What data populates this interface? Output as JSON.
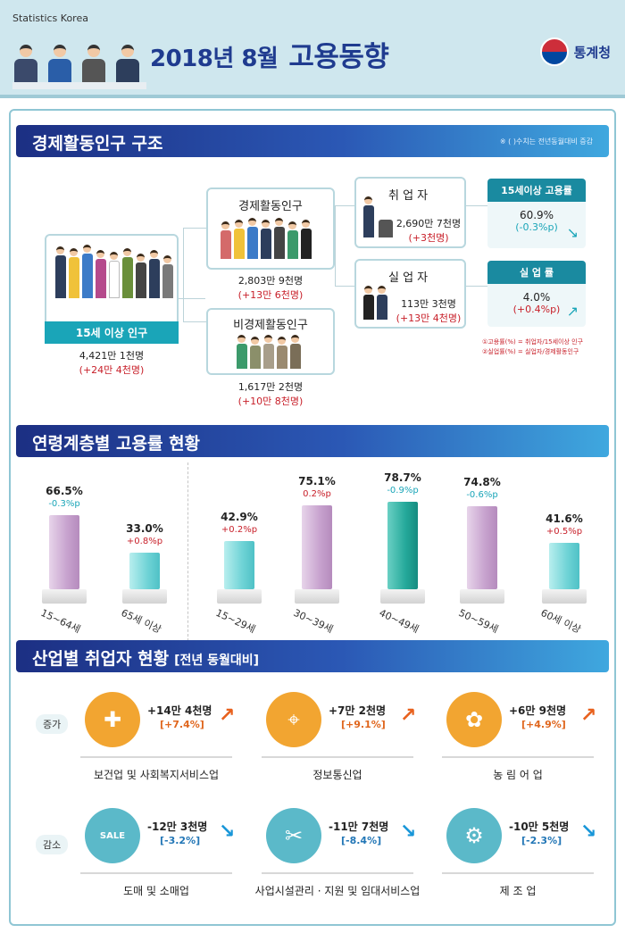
{
  "header": {
    "org_en": "Statistics Korea",
    "title": "2018년 8월",
    "title_sub": "고용동향",
    "logo_name": "통계청"
  },
  "section1": {
    "title": "경제활동인구 구조",
    "note": "※ ( )수치는 전년동월대비 증감",
    "pop15": {
      "label": "15세 이상 인구",
      "value": "4,421만 1천명",
      "change": "(+24만 4천명)"
    },
    "active": {
      "label": "경제활동인구",
      "value": "2,803만 9천명",
      "change": "(+13만 6천명)"
    },
    "inactive": {
      "label": "비경제활동인구",
      "value": "1,617만 2천명",
      "change": "(+10만 8천명)"
    },
    "employed": {
      "label": "취 업 자",
      "value": "2,690만 7천명",
      "change": "(+3천명)"
    },
    "unemployed": {
      "label": "실 업 자",
      "value": "113만 3천명",
      "change": "(+13만 4천명)"
    },
    "employment_rate": {
      "label": "15세이상 고용률",
      "value": "60.9%",
      "change": "(-0.3%p)"
    },
    "unemployment_rate": {
      "label": "실 업 률",
      "value": "4.0%",
      "change": "(+0.4%p)"
    },
    "footnote1": "①고용률(%) = 취업자/15세이상 인구",
    "footnote2": "②실업률(%) = 실업자/경제활동인구"
  },
  "section2": {
    "title": "연령계층별 고용률 현황"
  },
  "chart_data": {
    "type": "bar",
    "title": "연령계층별 고용률 현황",
    "categories": [
      "15~64세",
      "65세 이상",
      "15~29세",
      "30~39세",
      "40~49세",
      "50~59세",
      "60세 이상"
    ],
    "values": [
      66.5,
      33.0,
      42.9,
      75.1,
      78.7,
      74.8,
      41.6
    ],
    "value_labels": [
      "66.5%",
      "33.0%",
      "42.9%",
      "75.1%",
      "78.7%",
      "74.8%",
      "41.6%"
    ],
    "changes": [
      "-0.3%p",
      "+0.8%p",
      "+0.2%p",
      "0.2%p",
      "-0.9%p",
      "-0.6%p",
      "+0.5%p"
    ],
    "ylim": [
      0,
      100
    ]
  },
  "section3": {
    "title": "산업별 취업자 현황",
    "bracket": "[전년 동월대비]",
    "increase_label": "증가",
    "decrease_label": "감소",
    "increase": [
      {
        "name": "보건업 및 사회복지서비스업",
        "delta": "+14만 4천명",
        "pct": "[+7.4%]",
        "icon": "health-care-icon"
      },
      {
        "name": "정보통신업",
        "delta": "+7만 2천명",
        "pct": "[+9.1%]",
        "icon": "computer-mouse-icon"
      },
      {
        "name": "농 림 어 업",
        "delta": "+6만 9천명",
        "pct": "[+4.9%]",
        "icon": "farmer-icon"
      }
    ],
    "decrease": [
      {
        "name": "도매 및 소매업",
        "delta": "-12만 3천명",
        "pct": "[-3.2%]",
        "icon": "sale-tag-icon"
      },
      {
        "name": "사업시설관리 · 지원 및 임대서비스업",
        "delta": "-11만 7천명",
        "pct": "[-8.4%]",
        "icon": "facility-tools-icon"
      },
      {
        "name": "제 조 업",
        "delta": "-10만 5천명",
        "pct": "[-2.3%]",
        "icon": "manufacturing-icon"
      }
    ],
    "sale_text": "SALE"
  }
}
